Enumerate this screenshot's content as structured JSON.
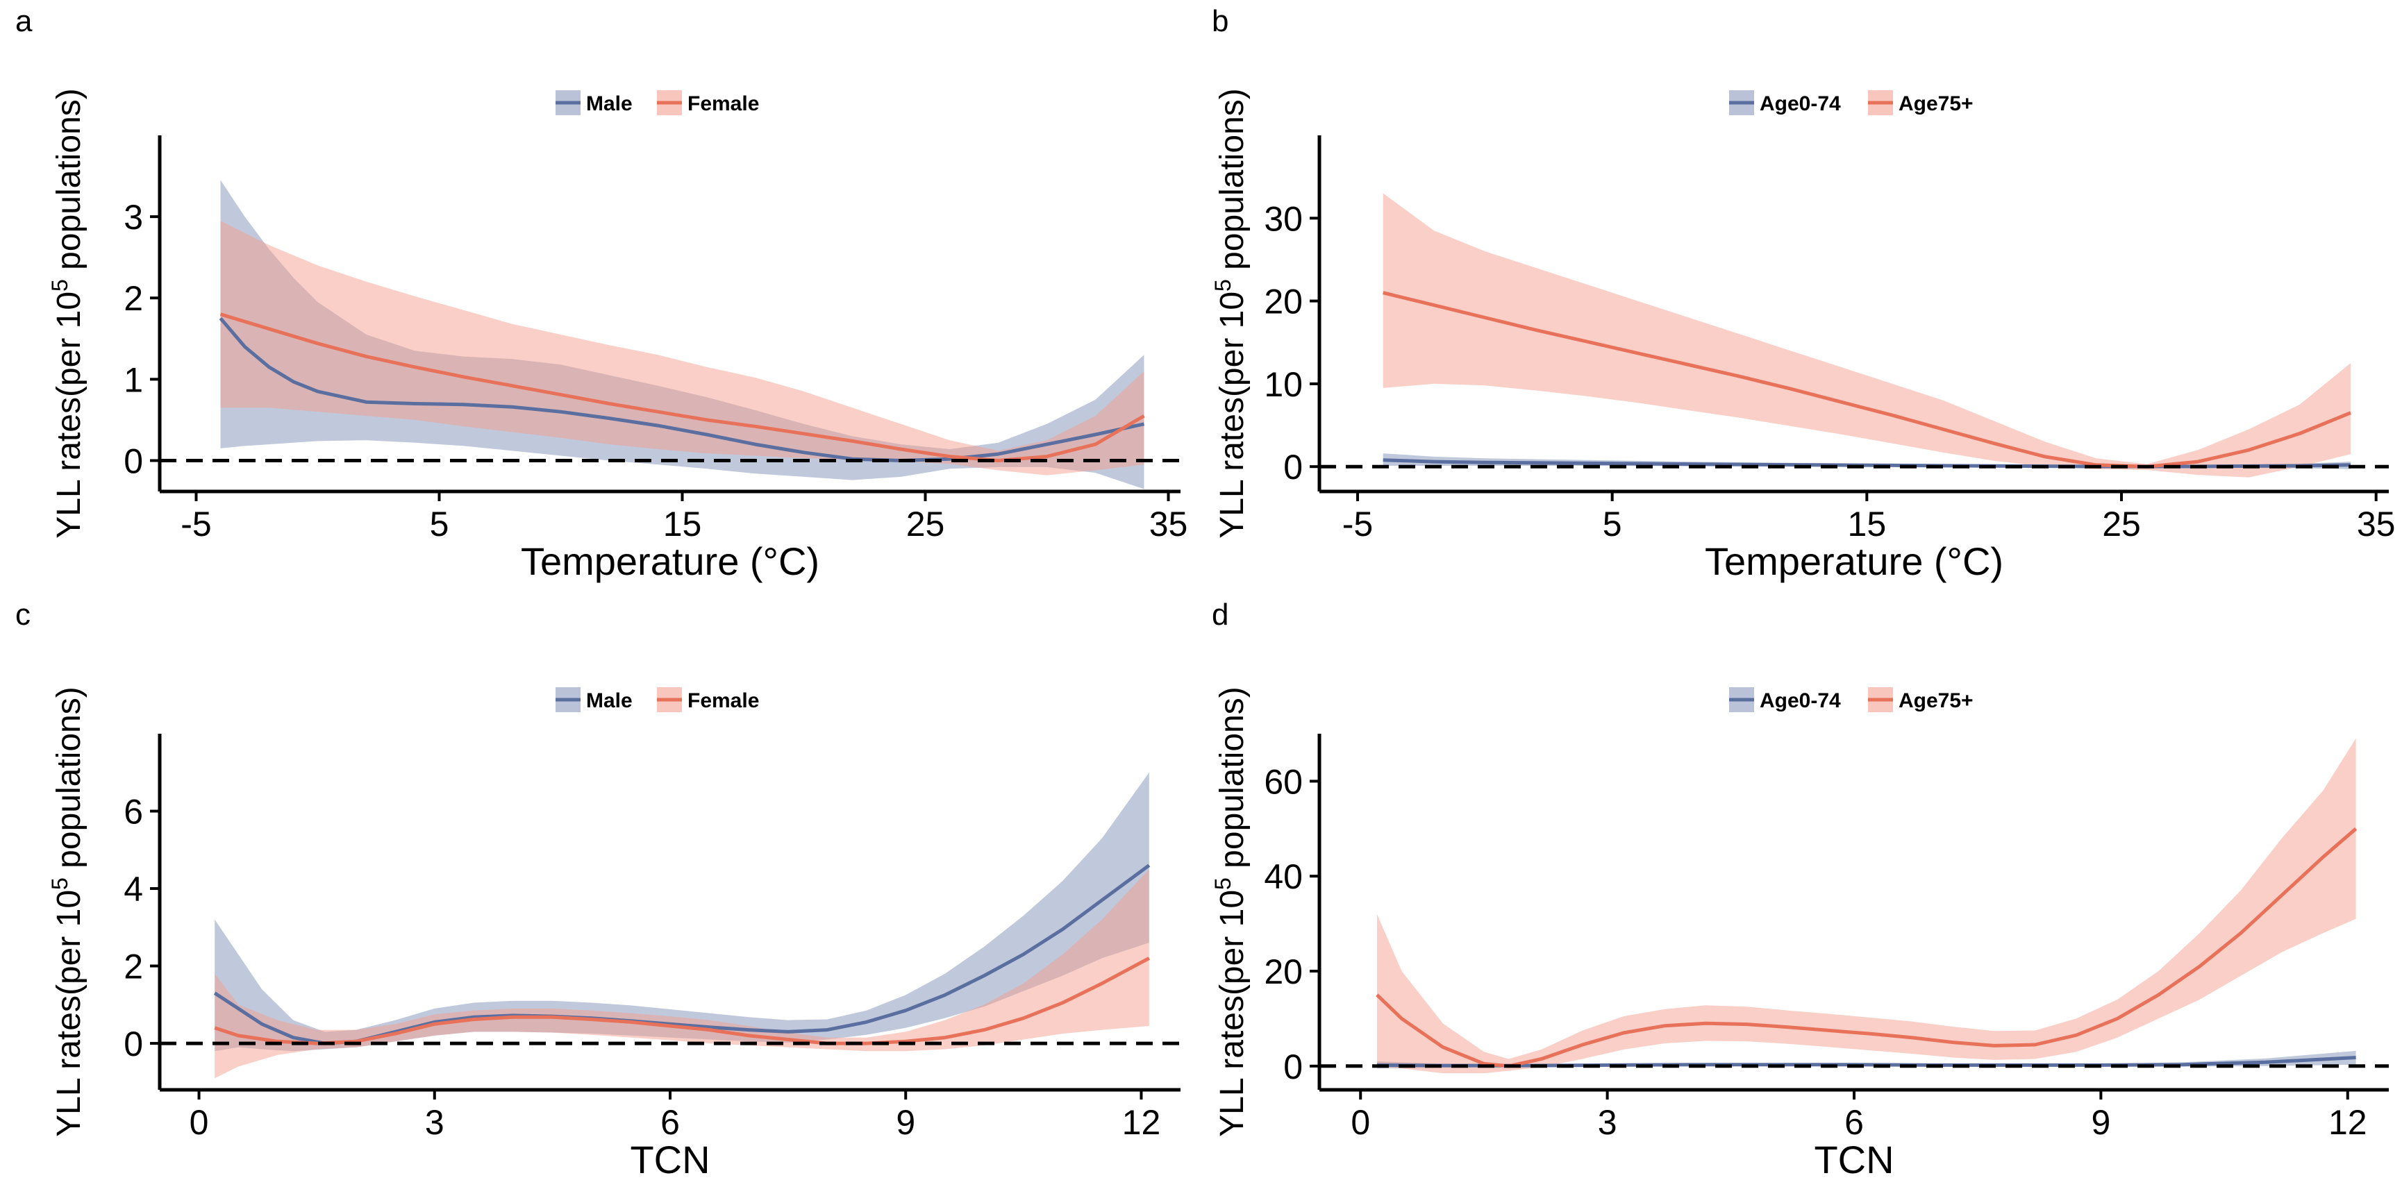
{
  "palette": {
    "blue": "#5A6FA0",
    "red": "#E8715A",
    "blue_fill": "#8C9ABD",
    "red_fill": "#F4A08F"
  },
  "chart_data": [
    {
      "type": "line",
      "tag": "a",
      "xlabel": "Temperature (°C)",
      "ylabel": "YLL rates(per 10",
      "ylabel_sup": "5",
      "ylabel_tail": " populations)",
      "xlim": [
        -6.5,
        35.5
      ],
      "ylim": [
        -0.38,
        4.0
      ],
      "xticks": [
        -5,
        5,
        15,
        25,
        35
      ],
      "xtick_labels": [
        "-5",
        "5",
        "15",
        "25",
        "35"
      ],
      "yticks": [
        0,
        1,
        2,
        3
      ],
      "ytick_labels": [
        "0",
        "1",
        "2",
        "3"
      ],
      "reference_line": 0,
      "series": [
        {
          "name": "Male",
          "color_key": "blue",
          "x": [
            -4,
            -3,
            -2,
            -1,
            0,
            2,
            4,
            6,
            8,
            10,
            12,
            14,
            16,
            18,
            20,
            22,
            24,
            26,
            28,
            30,
            32,
            34
          ],
          "y": [
            1.75,
            1.4,
            1.15,
            0.97,
            0.85,
            0.72,
            0.7,
            0.69,
            0.66,
            0.6,
            0.52,
            0.43,
            0.32,
            0.2,
            0.1,
            0.02,
            0.0,
            0.02,
            0.08,
            0.2,
            0.32,
            0.45
          ],
          "lower": [
            0.15,
            0.18,
            0.2,
            0.22,
            0.24,
            0.25,
            0.22,
            0.18,
            0.12,
            0.06,
            0.0,
            -0.05,
            -0.1,
            -0.16,
            -0.2,
            -0.24,
            -0.2,
            -0.1,
            -0.08,
            -0.08,
            -0.15,
            -0.35
          ],
          "upper": [
            3.45,
            3.0,
            2.6,
            2.25,
            1.95,
            1.55,
            1.35,
            1.28,
            1.25,
            1.18,
            1.05,
            0.92,
            0.78,
            0.62,
            0.45,
            0.3,
            0.2,
            0.14,
            0.22,
            0.45,
            0.75,
            1.3
          ]
        },
        {
          "name": "Female",
          "color_key": "red",
          "x": [
            -4,
            -2,
            0,
            2,
            4,
            6,
            8,
            10,
            12,
            14,
            16,
            18,
            20,
            22,
            24,
            26,
            28,
            30,
            32,
            34
          ],
          "y": [
            1.8,
            1.62,
            1.44,
            1.28,
            1.15,
            1.03,
            0.92,
            0.81,
            0.7,
            0.6,
            0.5,
            0.42,
            0.33,
            0.24,
            0.14,
            0.05,
            0.0,
            0.05,
            0.2,
            0.55
          ],
          "lower": [
            0.65,
            0.65,
            0.6,
            0.55,
            0.5,
            0.42,
            0.35,
            0.28,
            0.2,
            0.14,
            0.09,
            0.06,
            0.03,
            0.01,
            -0.01,
            -0.04,
            -0.12,
            -0.18,
            -0.12,
            -0.05
          ],
          "upper": [
            2.95,
            2.65,
            2.4,
            2.2,
            2.02,
            1.85,
            1.68,
            1.55,
            1.42,
            1.3,
            1.15,
            1.02,
            0.85,
            0.65,
            0.45,
            0.25,
            0.12,
            0.25,
            0.55,
            1.1
          ]
        }
      ]
    },
    {
      "type": "line",
      "tag": "b",
      "xlabel": "Temperature (°C)",
      "ylabel": "YLL rates(per 10",
      "ylabel_sup": "5",
      "ylabel_tail": " populations)",
      "xlim": [
        -6.5,
        35.5
      ],
      "ylim": [
        -3,
        40
      ],
      "xticks": [
        -5,
        5,
        15,
        25,
        35
      ],
      "xtick_labels": [
        "-5",
        "5",
        "15",
        "25",
        "35"
      ],
      "yticks": [
        0,
        10,
        20,
        30
      ],
      "ytick_labels": [
        "0",
        "10",
        "20",
        "30"
      ],
      "reference_line": 0,
      "series": [
        {
          "name": "Age0-74",
          "color_key": "blue",
          "x": [
            -4,
            -2,
            0,
            4,
            8,
            12,
            16,
            20,
            24,
            28,
            32,
            34
          ],
          "y": [
            0.8,
            0.6,
            0.5,
            0.4,
            0.3,
            0.22,
            0.15,
            0.08,
            0.02,
            0.02,
            0.1,
            0.2
          ],
          "lower": [
            0.1,
            0.1,
            0.1,
            0.1,
            0.05,
            0.02,
            0.0,
            -0.05,
            -0.1,
            -0.1,
            -0.2,
            -0.3
          ],
          "upper": [
            1.6,
            1.2,
            1.0,
            0.8,
            0.6,
            0.45,
            0.35,
            0.22,
            0.12,
            0.15,
            0.35,
            0.6
          ]
        },
        {
          "name": "Age75+",
          "color_key": "red",
          "x": [
            -4,
            -2,
            0,
            2,
            4,
            6,
            8,
            10,
            12,
            14,
            16,
            18,
            20,
            22,
            24,
            26,
            28,
            30,
            32,
            34
          ],
          "y": [
            21,
            19.5,
            18,
            16.5,
            15.1,
            13.7,
            12.3,
            10.9,
            9.4,
            7.8,
            6.2,
            4.5,
            2.8,
            1.2,
            0.2,
            0.0,
            0.6,
            2.0,
            4.0,
            6.5
          ],
          "lower": [
            9.5,
            10,
            9.8,
            9.2,
            8.5,
            7.7,
            6.8,
            5.9,
            4.9,
            3.9,
            2.8,
            1.7,
            0.7,
            0.0,
            -0.3,
            -0.4,
            -1.0,
            -1.3,
            0.0,
            1.5
          ],
          "upper": [
            33,
            28.5,
            26,
            24,
            22,
            20,
            18,
            16,
            14,
            12,
            10,
            8,
            5.5,
            3.0,
            1.0,
            0.3,
            2.0,
            4.5,
            7.5,
            12.5
          ]
        }
      ]
    },
    {
      "type": "line",
      "tag": "c",
      "xlabel": "TCN",
      "ylabel": "YLL rates(per 10",
      "ylabel_sup": "5",
      "ylabel_tail": " populations)",
      "xlim": [
        -0.5,
        12.5
      ],
      "ylim": [
        -1.2,
        8.0
      ],
      "xticks": [
        0,
        3,
        6,
        9,
        12
      ],
      "xtick_labels": [
        "0",
        "3",
        "6",
        "9",
        "12"
      ],
      "yticks": [
        0,
        2,
        4,
        6
      ],
      "ytick_labels": [
        "0",
        "2",
        "4",
        "6"
      ],
      "reference_line": 0,
      "series": [
        {
          "name": "Male",
          "color_key": "blue",
          "x": [
            0.2,
            0.5,
            0.8,
            1.2,
            1.6,
            2.0,
            2.5,
            3.0,
            3.5,
            4.0,
            4.5,
            5.0,
            5.5,
            6.0,
            6.5,
            7.0,
            7.5,
            8.0,
            8.5,
            9.0,
            9.5,
            10.0,
            10.5,
            11.0,
            11.5,
            12.1
          ],
          "y": [
            1.3,
            0.9,
            0.5,
            0.15,
            0.0,
            0.05,
            0.3,
            0.55,
            0.68,
            0.72,
            0.7,
            0.65,
            0.58,
            0.5,
            0.42,
            0.35,
            0.3,
            0.35,
            0.55,
            0.85,
            1.25,
            1.75,
            2.3,
            2.95,
            3.7,
            4.6
          ],
          "lower": [
            -0.2,
            -0.1,
            -0.15,
            -0.2,
            -0.15,
            -0.1,
            0.05,
            0.2,
            0.3,
            0.3,
            0.28,
            0.25,
            0.2,
            0.15,
            0.1,
            0.05,
            0.02,
            0.1,
            0.22,
            0.4,
            0.65,
            0.95,
            1.35,
            1.75,
            2.2,
            2.6
          ],
          "upper": [
            3.2,
            2.3,
            1.4,
            0.6,
            0.3,
            0.35,
            0.6,
            0.9,
            1.05,
            1.1,
            1.1,
            1.05,
            0.98,
            0.88,
            0.78,
            0.68,
            0.6,
            0.62,
            0.85,
            1.25,
            1.8,
            2.5,
            3.3,
            4.2,
            5.3,
            7.0
          ]
        },
        {
          "name": "Female",
          "color_key": "red",
          "x": [
            0.2,
            0.5,
            1.0,
            1.5,
            2.0,
            2.5,
            3.0,
            3.5,
            4.0,
            4.5,
            5.0,
            5.5,
            6.0,
            6.5,
            7.0,
            7.5,
            8.0,
            8.5,
            9.0,
            9.5,
            10.0,
            10.5,
            11.0,
            11.5,
            12.1
          ],
          "y": [
            0.4,
            0.2,
            0.05,
            0.0,
            0.05,
            0.25,
            0.5,
            0.62,
            0.68,
            0.68,
            0.62,
            0.55,
            0.45,
            0.35,
            0.2,
            0.1,
            0.0,
            0.0,
            0.05,
            0.15,
            0.35,
            0.65,
            1.05,
            1.55,
            2.2
          ],
          "lower": [
            -0.9,
            -0.6,
            -0.3,
            -0.15,
            -0.1,
            0.05,
            0.2,
            0.3,
            0.3,
            0.28,
            0.22,
            0.15,
            0.08,
            0.0,
            -0.05,
            -0.1,
            -0.15,
            -0.2,
            -0.2,
            -0.15,
            -0.05,
            0.1,
            0.25,
            0.35,
            0.45
          ],
          "upper": [
            1.8,
            1.0,
            0.6,
            0.35,
            0.35,
            0.5,
            0.75,
            0.85,
            0.9,
            0.9,
            0.85,
            0.78,
            0.7,
            0.6,
            0.45,
            0.28,
            0.15,
            0.15,
            0.3,
            0.6,
            1.0,
            1.55,
            2.3,
            3.2,
            4.5
          ]
        }
      ]
    },
    {
      "type": "line",
      "tag": "d",
      "xlabel": "TCN",
      "ylabel": "YLL rates(per 10",
      "ylabel_sup": "5",
      "ylabel_tail": " populations)",
      "xlim": [
        -0.5,
        12.5
      ],
      "ylim": [
        -5,
        70
      ],
      "xticks": [
        0,
        3,
        6,
        9,
        12
      ],
      "xtick_labels": [
        "0",
        "3",
        "6",
        "9",
        "12"
      ],
      "yticks": [
        0,
        20,
        40,
        60
      ],
      "ytick_labels": [
        "0",
        "20",
        "40",
        "60"
      ],
      "reference_line": 0,
      "series": [
        {
          "name": "Age0-74",
          "color_key": "blue",
          "x": [
            0.2,
            1,
            2,
            3,
            4,
            5,
            6,
            7,
            8,
            9,
            10,
            11,
            12.1
          ],
          "y": [
            0.2,
            0.1,
            0.1,
            0.2,
            0.3,
            0.3,
            0.3,
            0.2,
            0.2,
            0.2,
            0.3,
            0.8,
            1.8
          ],
          "lower": [
            -0.5,
            -0.3,
            -0.2,
            -0.1,
            0.0,
            0.0,
            0.0,
            -0.1,
            -0.1,
            -0.1,
            -0.1,
            0.0,
            0.3
          ],
          "upper": [
            1.0,
            0.5,
            0.4,
            0.5,
            0.6,
            0.6,
            0.6,
            0.5,
            0.5,
            0.5,
            0.8,
            1.6,
            3.2
          ]
        },
        {
          "name": "Age75+",
          "color_key": "red",
          "x": [
            0.2,
            0.5,
            1.0,
            1.5,
            1.8,
            2.2,
            2.7,
            3.2,
            3.7,
            4.2,
            4.7,
            5.2,
            5.7,
            6.2,
            6.7,
            7.2,
            7.7,
            8.2,
            8.7,
            9.2,
            9.7,
            10.2,
            10.7,
            11.2,
            11.7,
            12.1
          ],
          "y": [
            15,
            10,
            4,
            0.5,
            0.0,
            1.5,
            4.5,
            7,
            8.5,
            9,
            8.8,
            8.2,
            7.5,
            6.8,
            6,
            5,
            4.3,
            4.5,
            6.5,
            10,
            15,
            21,
            28,
            36,
            44,
            50
          ],
          "lower": [
            0.0,
            -0.5,
            -1.5,
            -1.5,
            -1.0,
            -0.2,
            1.5,
            3.5,
            4.8,
            5.3,
            5.2,
            4.7,
            4.0,
            3.3,
            2.6,
            1.8,
            1.3,
            1.5,
            3.0,
            6.0,
            10.0,
            14.0,
            19.0,
            24.0,
            28.0,
            31.0
          ],
          "upper": [
            32,
            20,
            9,
            3.0,
            1.5,
            3.5,
            7.5,
            10.5,
            12.0,
            12.8,
            12.5,
            11.7,
            11.0,
            10.2,
            9.4,
            8.3,
            7.4,
            7.5,
            10.0,
            14.0,
            20.0,
            28.0,
            37.0,
            48.0,
            58.0,
            69.0
          ]
        }
      ]
    }
  ]
}
